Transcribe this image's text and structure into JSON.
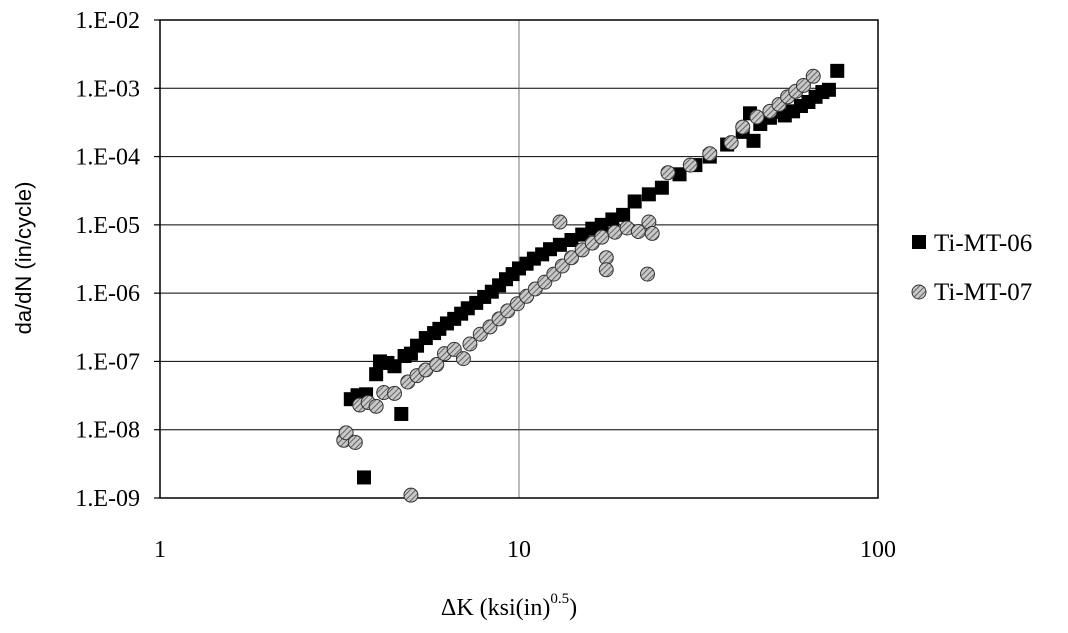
{
  "chart_data": {
    "type": "scatter",
    "title": "",
    "xlabel": "ΔK (ksi(in)",
    "xlabel_superscript": "0.5",
    "xlabel_suffix": ")",
    "ylabel": "da/dN (in/cycle)",
    "xscale": "log",
    "yscale": "log",
    "xlim": [
      1,
      100
    ],
    "ylim": [
      1e-09,
      0.01
    ],
    "x_tick_values": [
      1,
      10,
      100
    ],
    "x_tick_labels": [
      "1",
      "10",
      "100"
    ],
    "y_tick_values": [
      1e-09,
      1e-08,
      1e-07,
      1e-06,
      1e-05,
      0.0001,
      0.001,
      0.01
    ],
    "y_tick_labels": [
      "1.E-09",
      "1.E-08",
      "1.E-07",
      "1.E-06",
      "1.E-05",
      "1.E-04",
      "1.E-03",
      "1.E-02"
    ],
    "grid": "major",
    "legend_position": "right",
    "series": [
      {
        "name": "Ti-MT-06",
        "marker": "square",
        "color": "#000000",
        "points": [
          [
            3.4,
            2.8e-08
          ],
          [
            3.55,
            3.2e-08
          ],
          [
            3.75,
            3.3e-08
          ],
          [
            3.7,
            2e-09
          ],
          [
            4.0,
            6.5e-08
          ],
          [
            4.1,
            1e-07
          ],
          [
            4.3,
            9.5e-08
          ],
          [
            4.5,
            8.5e-08
          ],
          [
            4.7,
            1.7e-08
          ],
          [
            4.8,
            1.2e-07
          ],
          [
            5.0,
            1.3e-07
          ],
          [
            5.2,
            1.7e-07
          ],
          [
            5.5,
            2.2e-07
          ],
          [
            5.8,
            2.6e-07
          ],
          [
            6.0,
            3e-07
          ],
          [
            6.3,
            3.6e-07
          ],
          [
            6.6,
            4.2e-07
          ],
          [
            6.9,
            5e-07
          ],
          [
            7.2,
            6e-07
          ],
          [
            7.6,
            7.2e-07
          ],
          [
            8.0,
            8.8e-07
          ],
          [
            8.4,
            1.05e-06
          ],
          [
            8.8,
            1.3e-06
          ],
          [
            9.2,
            1.6e-06
          ],
          [
            9.6,
            1.9e-06
          ],
          [
            10.0,
            2.3e-06
          ],
          [
            10.5,
            2.7e-06
          ],
          [
            11.0,
            3.2e-06
          ],
          [
            11.6,
            3.7e-06
          ],
          [
            12.2,
            4.4e-06
          ],
          [
            13.0,
            5.1e-06
          ],
          [
            14.0,
            6e-06
          ],
          [
            15.0,
            7.2e-06
          ],
          [
            16.0,
            8.8e-06
          ],
          [
            17.0,
            1e-05
          ],
          [
            18.2,
            1.2e-05
          ],
          [
            19.5,
            1.4e-05
          ],
          [
            21.0,
            2.2e-05
          ],
          [
            23.0,
            2.8e-05
          ],
          [
            25.0,
            3.5e-05
          ],
          [
            28.0,
            5.5e-05
          ],
          [
            31.0,
            7.5e-05
          ],
          [
            34.0,
            0.0001
          ],
          [
            38.0,
            0.00015
          ],
          [
            42.0,
            0.00023
          ],
          [
            44.0,
            0.00043
          ],
          [
            45.0,
            0.00017
          ],
          [
            47.0,
            0.0003
          ],
          [
            50.0,
            0.00037
          ],
          [
            52.0,
            0.00045
          ],
          [
            55.0,
            0.0004
          ],
          [
            58.0,
            0.00046
          ],
          [
            61.0,
            0.00055
          ],
          [
            64.0,
            0.00063
          ],
          [
            67.0,
            0.00075
          ],
          [
            70.0,
            0.00088
          ],
          [
            73.0,
            0.00095
          ],
          [
            77.0,
            0.0018
          ]
        ]
      },
      {
        "name": "Ti-MT-07",
        "marker": "circle-hatched",
        "color": "#000000",
        "points": [
          [
            3.25,
            7e-09
          ],
          [
            3.3,
            9e-09
          ],
          [
            3.5,
            6.5e-09
          ],
          [
            3.6,
            2.3e-08
          ],
          [
            3.8,
            2.5e-08
          ],
          [
            4.0,
            2.2e-08
          ],
          [
            4.2,
            3.5e-08
          ],
          [
            4.5,
            3.4e-08
          ],
          [
            4.9,
            5e-08
          ],
          [
            5.0,
            1.1e-09
          ],
          [
            5.2,
            6.2e-08
          ],
          [
            5.5,
            7.5e-08
          ],
          [
            5.9,
            9e-08
          ],
          [
            6.2,
            1.3e-07
          ],
          [
            6.6,
            1.5e-07
          ],
          [
            7.0,
            1.1e-07
          ],
          [
            7.3,
            1.8e-07
          ],
          [
            7.8,
            2.5e-07
          ],
          [
            8.3,
            3.2e-07
          ],
          [
            8.8,
            4.2e-07
          ],
          [
            9.3,
            5.5e-07
          ],
          [
            9.9,
            7e-07
          ],
          [
            10.5,
            9e-07
          ],
          [
            11.1,
            1.15e-06
          ],
          [
            11.8,
            1.45e-06
          ],
          [
            12.5,
            1.9e-06
          ],
          [
            13.2,
            2.5e-06
          ],
          [
            13.0,
            1.1e-05
          ],
          [
            14.0,
            3.3e-06
          ],
          [
            15.0,
            4.3e-06
          ],
          [
            16.0,
            5.4e-06
          ],
          [
            17.0,
            6.6e-06
          ],
          [
            17.5,
            3.3e-06
          ],
          [
            17.5,
            2.2e-06
          ],
          [
            18.5,
            7.8e-06
          ],
          [
            20.0,
            9e-06
          ],
          [
            21.5,
            8e-06
          ],
          [
            23.0,
            1.1e-05
          ],
          [
            23.5,
            7.5e-06
          ],
          [
            22.8,
            1.9e-06
          ],
          [
            26.0,
            5.8e-05
          ],
          [
            30.0,
            7.5e-05
          ],
          [
            34.0,
            0.00011
          ],
          [
            39.0,
            0.00016
          ],
          [
            42.0,
            0.00027
          ],
          [
            46.0,
            0.00038
          ],
          [
            50.0,
            0.00046
          ],
          [
            53.0,
            0.00058
          ],
          [
            56.0,
            0.00075
          ],
          [
            59.0,
            0.0009
          ],
          [
            62.0,
            0.0011
          ],
          [
            66.0,
            0.0015
          ]
        ]
      }
    ]
  }
}
